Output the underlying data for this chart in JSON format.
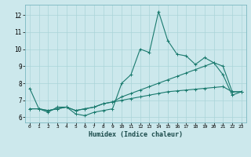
{
  "xlabel": "Humidex (Indice chaleur)",
  "bg_color": "#cce8ec",
  "grid_color": "#aad4d8",
  "line_color": "#1a7a6e",
  "xlim": [
    -0.5,
    23.5
  ],
  "ylim": [
    5.7,
    12.6
  ],
  "yticks": [
    6,
    7,
    8,
    9,
    10,
    11,
    12
  ],
  "xticks": [
    0,
    1,
    2,
    3,
    4,
    5,
    6,
    7,
    8,
    9,
    10,
    11,
    12,
    13,
    14,
    15,
    16,
    17,
    18,
    19,
    20,
    21,
    22,
    23
  ],
  "line1": [
    7.7,
    6.5,
    6.3,
    6.6,
    6.6,
    6.2,
    6.1,
    6.3,
    6.4,
    6.5,
    8.0,
    8.5,
    10.0,
    9.8,
    12.2,
    10.5,
    9.7,
    9.6,
    9.1,
    9.5,
    9.2,
    8.5,
    7.3,
    7.5
  ],
  "line2": [
    6.5,
    6.5,
    6.4,
    6.5,
    6.6,
    6.4,
    6.5,
    6.6,
    6.8,
    6.9,
    7.2,
    7.4,
    7.6,
    7.8,
    8.0,
    8.2,
    8.4,
    8.6,
    8.8,
    9.0,
    9.2,
    9.0,
    7.5,
    7.5
  ],
  "line3": [
    6.5,
    6.5,
    6.4,
    6.5,
    6.6,
    6.4,
    6.5,
    6.6,
    6.8,
    6.9,
    7.0,
    7.1,
    7.2,
    7.3,
    7.4,
    7.5,
    7.55,
    7.6,
    7.65,
    7.7,
    7.75,
    7.8,
    7.5,
    7.5
  ]
}
